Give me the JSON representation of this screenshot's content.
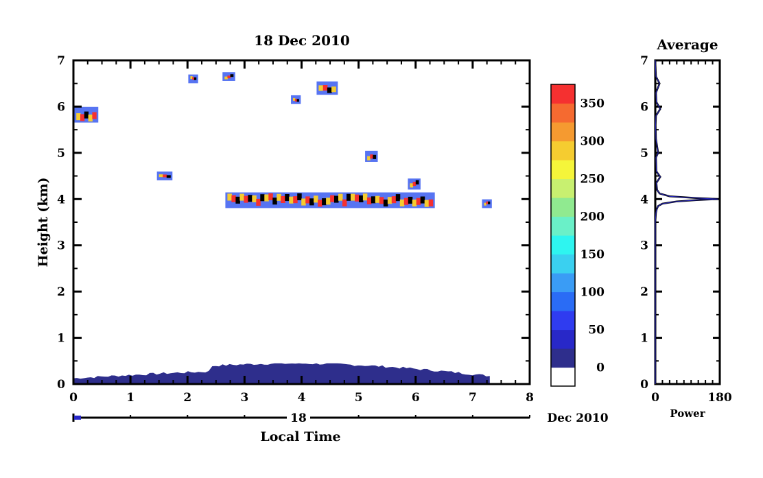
{
  "main_plot": {
    "title": "18 Dec 2010",
    "xlabel": "Local Time",
    "ylabel": "Height (km)",
    "x_ticks": [
      "0",
      "1",
      "2",
      "3",
      "4",
      "5",
      "6",
      "7",
      "8"
    ],
    "y_ticks": [
      "0",
      "1",
      "2",
      "3",
      "4",
      "5",
      "6",
      "7"
    ],
    "day_label": "18",
    "month_label": "Dec 2010"
  },
  "colorbar": {
    "labels": [
      "0",
      "50",
      "100",
      "150",
      "200",
      "250",
      "300",
      "350"
    ],
    "colors": [
      "#2e2e8c",
      "#2828c8",
      "#2f3cf0",
      "#2a6cf5",
      "#3a9cf5",
      "#3ad0f0",
      "#2ef5f0",
      "#6af0c8",
      "#90ea90",
      "#c8f070",
      "#f5f53a",
      "#f5cc30",
      "#f59a30",
      "#f56a30",
      "#f53030"
    ],
    "below_color": "#ffffff"
  },
  "profile_plot": {
    "title": "Average",
    "xlabel": "Power",
    "x_ticks": [
      "0",
      "180"
    ],
    "y_ticks": [
      "0",
      "1",
      "2",
      "3",
      "4",
      "5",
      "6",
      "7"
    ]
  },
  "chart_data": [
    {
      "type": "heatmap",
      "title": "18 Dec 2010",
      "xlabel": "Local Time",
      "ylabel": "Height (km)",
      "xlim": [
        0,
        8
      ],
      "ylim": [
        0,
        7
      ],
      "colorbar_range": [
        0,
        380
      ],
      "features": [
        {
          "name": "ground-clutter",
          "x": [
            0,
            7.3
          ],
          "y": [
            0,
            0.45
          ],
          "value": 20
        },
        {
          "name": "layer-4km",
          "x": [
            2.7,
            6.3
          ],
          "y": [
            3.85,
            4.1
          ],
          "value": 380
        },
        {
          "name": "layer-4.5km",
          "x": [
            1.5,
            1.7
          ],
          "y": [
            4.45,
            4.55
          ],
          "value": 380
        },
        {
          "name": "layer-5.8km",
          "x": [
            0.05,
            0.4
          ],
          "y": [
            5.7,
            5.95
          ],
          "value": 380
        },
        {
          "name": "blob-4.3km",
          "x": [
            5.9,
            6.05
          ],
          "y": [
            4.25,
            4.4
          ],
          "value": 300
        },
        {
          "name": "blob-4.9km",
          "x": [
            5.15,
            5.3
          ],
          "y": [
            4.85,
            5.0
          ],
          "value": 300
        },
        {
          "name": "blob-6.1km",
          "x": [
            3.85,
            3.95
          ],
          "y": [
            6.1,
            6.2
          ],
          "value": 300
        },
        {
          "name": "blob-6.4km",
          "x": [
            4.3,
            4.6
          ],
          "y": [
            6.3,
            6.5
          ],
          "value": 300
        },
        {
          "name": "blob-6.6km",
          "x": [
            2.05,
            2.15
          ],
          "y": [
            6.55,
            6.65
          ],
          "value": 300
        },
        {
          "name": "blob-6.65km",
          "x": [
            2.65,
            2.8
          ],
          "y": [
            6.6,
            6.7
          ],
          "value": 300
        },
        {
          "name": "layer-3.9km-end",
          "x": [
            7.2,
            7.3
          ],
          "y": [
            3.85,
            3.95
          ],
          "value": 300
        }
      ]
    },
    {
      "type": "line",
      "title": "Average",
      "xlabel": "Power",
      "ylabel": "",
      "xlim": [
        0,
        180
      ],
      "ylim": [
        0,
        7
      ],
      "series": [
        {
          "x": [
            0,
            0,
            2,
            4,
            8,
            20,
            60,
            120,
            176,
            120,
            40,
            12,
            5,
            3,
            14,
            3,
            2,
            8,
            2,
            1,
            2,
            14,
            3,
            2,
            12,
            2,
            0
          ],
          "y": [
            0,
            3.5,
            3.7,
            3.78,
            3.85,
            3.9,
            3.95,
            3.98,
            4.0,
            4.02,
            4.06,
            4.12,
            4.2,
            4.35,
            4.48,
            4.6,
            4.9,
            5.0,
            5.3,
            5.6,
            5.8,
            5.95,
            6.1,
            6.3,
            6.5,
            6.65,
            7.0
          ]
        }
      ]
    }
  ]
}
